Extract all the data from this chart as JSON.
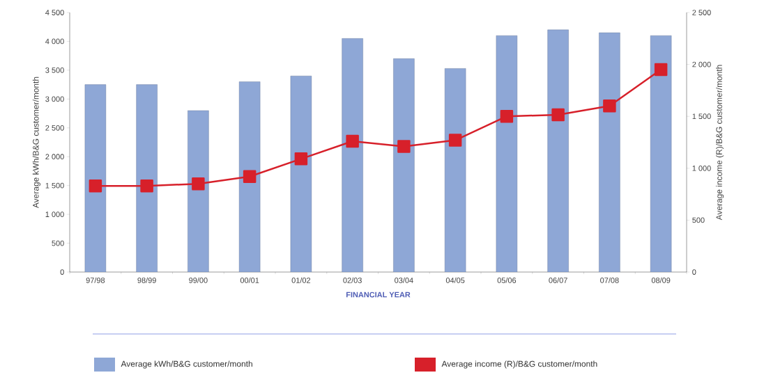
{
  "chart_data": {
    "type": "bar",
    "xlabel": "FINANCIAL YEAR",
    "ylabel": "Average kWh/B&G customer/month",
    "y2label": "Average income (R)/B&G customer/month",
    "categories": [
      "97/98",
      "98/99",
      "99/00",
      "00/01",
      "01/02",
      "02/03",
      "03/04",
      "04/05",
      "05/06",
      "06/07",
      "07/08",
      "08/09"
    ],
    "series": [
      {
        "name": "Average kWh/B&G customer/month",
        "color": "#8ea7d6",
        "values": [
          3250,
          3250,
          2800,
          3300,
          3400,
          4050,
          3700,
          3530,
          4100,
          4200,
          4150,
          4100
        ]
      },
      {
        "name": "Average income (R)/B&G customer/month",
        "type": "line",
        "axis": "y2",
        "color": "#d7202a",
        "values": [
          830,
          830,
          850,
          920,
          1090,
          1260,
          1210,
          1270,
          1500,
          1515,
          1600,
          1950
        ]
      }
    ],
    "ylim": [
      0,
      4500
    ],
    "yticks": [
      0,
      500,
      {
        "value": 1000,
        "label": "1 000"
      },
      {
        "value": 1500,
        "label": "1 500"
      },
      {
        "value": 2000,
        "label": "2 000"
      },
      {
        "value": 2500,
        "label": "2 500"
      },
      {
        "value": 3000,
        "label": "3 000"
      },
      {
        "value": 3500,
        "label": "3 500"
      },
      {
        "value": 4000,
        "label": "4 000"
      },
      {
        "value": 4500,
        "label": "4 500"
      }
    ],
    "y2lim": [
      0,
      2500
    ],
    "y2ticks": [
      0,
      500,
      {
        "value": 1000,
        "label": "1 000"
      },
      {
        "value": 1500,
        "label": "1 500"
      },
      {
        "value": 2000,
        "label": "2 000"
      },
      {
        "value": 2500,
        "label": "2 500"
      }
    ],
    "legend": "bottom",
    "marker": "square",
    "grid": false
  }
}
